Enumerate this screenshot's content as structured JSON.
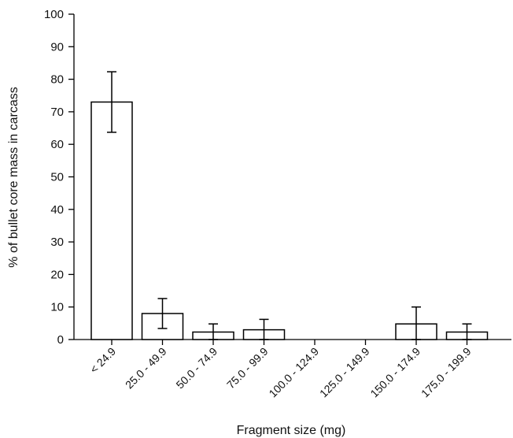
{
  "chart_data": {
    "type": "bar",
    "title": "",
    "xlabel": "Fragment size (mg)",
    "ylabel": "% of bullet core mass in carcass",
    "ylim": [
      0,
      100
    ],
    "yticks": [
      0,
      10,
      20,
      30,
      40,
      50,
      60,
      70,
      80,
      90,
      100
    ],
    "grid": false,
    "categories": [
      "< 24.9",
      "25.0 - 49.9",
      "50.0 - 74.9",
      "75.0 - 99.9",
      "100.0 - 124.9",
      "125.0 - 149.9",
      "150.0 - 174.9",
      "175.0 - 199.9"
    ],
    "values": [
      73,
      8,
      2.3,
      3,
      0,
      0,
      4.8,
      2.3
    ],
    "error": [
      9.3,
      4.6,
      2.5,
      3.2,
      0,
      0,
      5.2,
      2.5
    ],
    "colors": {
      "bar_fill": "#ffffff",
      "stroke": "#000000"
    }
  }
}
